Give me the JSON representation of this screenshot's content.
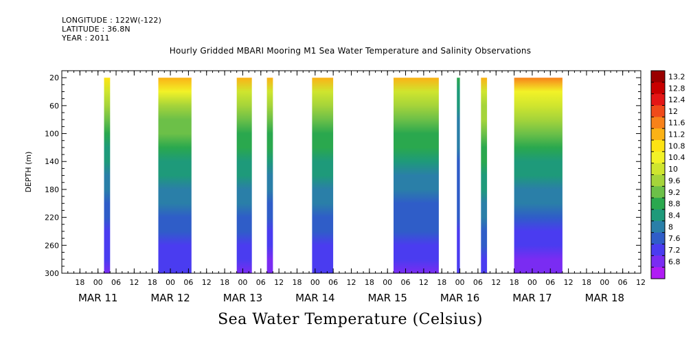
{
  "header": {
    "longitude": "LONGITUDE : 122W(-122)",
    "latitude": "LATITUDE : 36.8N",
    "year": "YEAR : 2011"
  },
  "chart_data": {
    "type": "heatmap",
    "title": "Hourly Gridded MBARI Mooring M1 Sea Water Temperature and Salinity Observations",
    "bottom_title": "Sea Water Temperature (Celsius)",
    "ylabel": "DEPTH (m)",
    "ylim": [
      300,
      10
    ],
    "y_ticks": [
      20,
      60,
      100,
      140,
      180,
      220,
      260,
      300
    ],
    "x_range_hours": [
      "2011-03-10T12:00",
      "2011-03-18T12:00"
    ],
    "x_hour_ticks": [
      {
        "t": "2011-03-10T18:00",
        "label": "18"
      },
      {
        "t": "2011-03-11T00:00",
        "label": "00"
      },
      {
        "t": "2011-03-11T06:00",
        "label": "06"
      },
      {
        "t": "2011-03-11T12:00",
        "label": "12"
      },
      {
        "t": "2011-03-11T18:00",
        "label": "18"
      },
      {
        "t": "2011-03-12T00:00",
        "label": "00"
      },
      {
        "t": "2011-03-12T06:00",
        "label": "06"
      },
      {
        "t": "2011-03-12T12:00",
        "label": "12"
      },
      {
        "t": "2011-03-12T18:00",
        "label": "18"
      },
      {
        "t": "2011-03-13T00:00",
        "label": "00"
      },
      {
        "t": "2011-03-13T06:00",
        "label": "06"
      },
      {
        "t": "2011-03-13T12:00",
        "label": "12"
      },
      {
        "t": "2011-03-13T18:00",
        "label": "18"
      },
      {
        "t": "2011-03-14T00:00",
        "label": "00"
      },
      {
        "t": "2011-03-14T06:00",
        "label": "06"
      },
      {
        "t": "2011-03-14T12:00",
        "label": "12"
      },
      {
        "t": "2011-03-14T18:00",
        "label": "18"
      },
      {
        "t": "2011-03-15T00:00",
        "label": "00"
      },
      {
        "t": "2011-03-15T06:00",
        "label": "06"
      },
      {
        "t": "2011-03-15T12:00",
        "label": "12"
      },
      {
        "t": "2011-03-15T18:00",
        "label": "18"
      },
      {
        "t": "2011-03-16T00:00",
        "label": "00"
      },
      {
        "t": "2011-03-16T06:00",
        "label": "06"
      },
      {
        "t": "2011-03-16T12:00",
        "label": "12"
      },
      {
        "t": "2011-03-16T18:00",
        "label": "18"
      },
      {
        "t": "2011-03-17T00:00",
        "label": "00"
      },
      {
        "t": "2011-03-17T06:00",
        "label": "06"
      },
      {
        "t": "2011-03-17T12:00",
        "label": "12"
      },
      {
        "t": "2011-03-17T18:00",
        "label": "18"
      },
      {
        "t": "2011-03-18T00:00",
        "label": "00"
      },
      {
        "t": "2011-03-18T06:00",
        "label": "06"
      },
      {
        "t": "2011-03-18T12:00",
        "label": "12"
      }
    ],
    "date_labels": [
      {
        "t": "2011-03-11T00:00",
        "label": "MAR 11"
      },
      {
        "t": "2011-03-12T00:00",
        "label": "MAR 12"
      },
      {
        "t": "2011-03-13T00:00",
        "label": "MAR 13"
      },
      {
        "t": "2011-03-14T00:00",
        "label": "MAR 14"
      },
      {
        "t": "2011-03-15T00:00",
        "label": "MAR 15"
      },
      {
        "t": "2011-03-16T00:00",
        "label": "MAR 16"
      },
      {
        "t": "2011-03-17T00:00",
        "label": "MAR 17"
      },
      {
        "t": "2011-03-18T00:00",
        "label": "MAR 18"
      }
    ],
    "segments": [
      {
        "start": "2011-03-11T02:00",
        "end": "2011-03-11T04:00",
        "surface_temp": 11.0,
        "bottom_temp": 7.1
      },
      {
        "start": "2011-03-11T20:00",
        "end": "2011-03-12T07:00",
        "surface_temp": 11.4,
        "bottom_temp": 7.2
      },
      {
        "start": "2011-03-12T22:00",
        "end": "2011-03-13T03:00",
        "surface_temp": 11.3,
        "bottom_temp": 7.1
      },
      {
        "start": "2011-03-13T08:00",
        "end": "2011-03-13T10:00",
        "surface_temp": 11.2,
        "bottom_temp": 7.0
      },
      {
        "start": "2011-03-13T23:00",
        "end": "2011-03-14T06:00",
        "surface_temp": 11.2,
        "bottom_temp": 7.2
      },
      {
        "start": "2011-03-15T02:00",
        "end": "2011-03-15T17:00",
        "surface_temp": 11.2,
        "bottom_temp": 7.1
      },
      {
        "start": "2011-03-15T23:00",
        "end": "2011-03-16T00:00",
        "surface_temp": 9.0,
        "bottom_temp": 7.4
      },
      {
        "start": "2011-03-16T07:00",
        "end": "2011-03-16T09:00",
        "surface_temp": 11.3,
        "bottom_temp": 7.4
      },
      {
        "start": "2011-03-16T18:00",
        "end": "2011-03-17T10:00",
        "surface_temp": 11.8,
        "bottom_temp": 7.0
      }
    ],
    "colorbar": {
      "levels": [
        "13.2",
        "12.8",
        "12.4",
        "12",
        "11.6",
        "11.2",
        "10.8",
        "10.4",
        "10",
        "9.6",
        "9.2",
        "8.8",
        "8.4",
        "8",
        "7.6",
        "7.2",
        "6.8"
      ],
      "colors": [
        "#9a0000",
        "#c80000",
        "#e41616",
        "#f04a1a",
        "#f8821a",
        "#fbb216",
        "#fde314",
        "#f2f227",
        "#cfe52e",
        "#a5d43a",
        "#6cc048",
        "#2aa84e",
        "#1e9a7a",
        "#2a7fa8",
        "#2f5dc8",
        "#4a3cf0",
        "#7a2cf2",
        "#b01cf4"
      ]
    }
  }
}
